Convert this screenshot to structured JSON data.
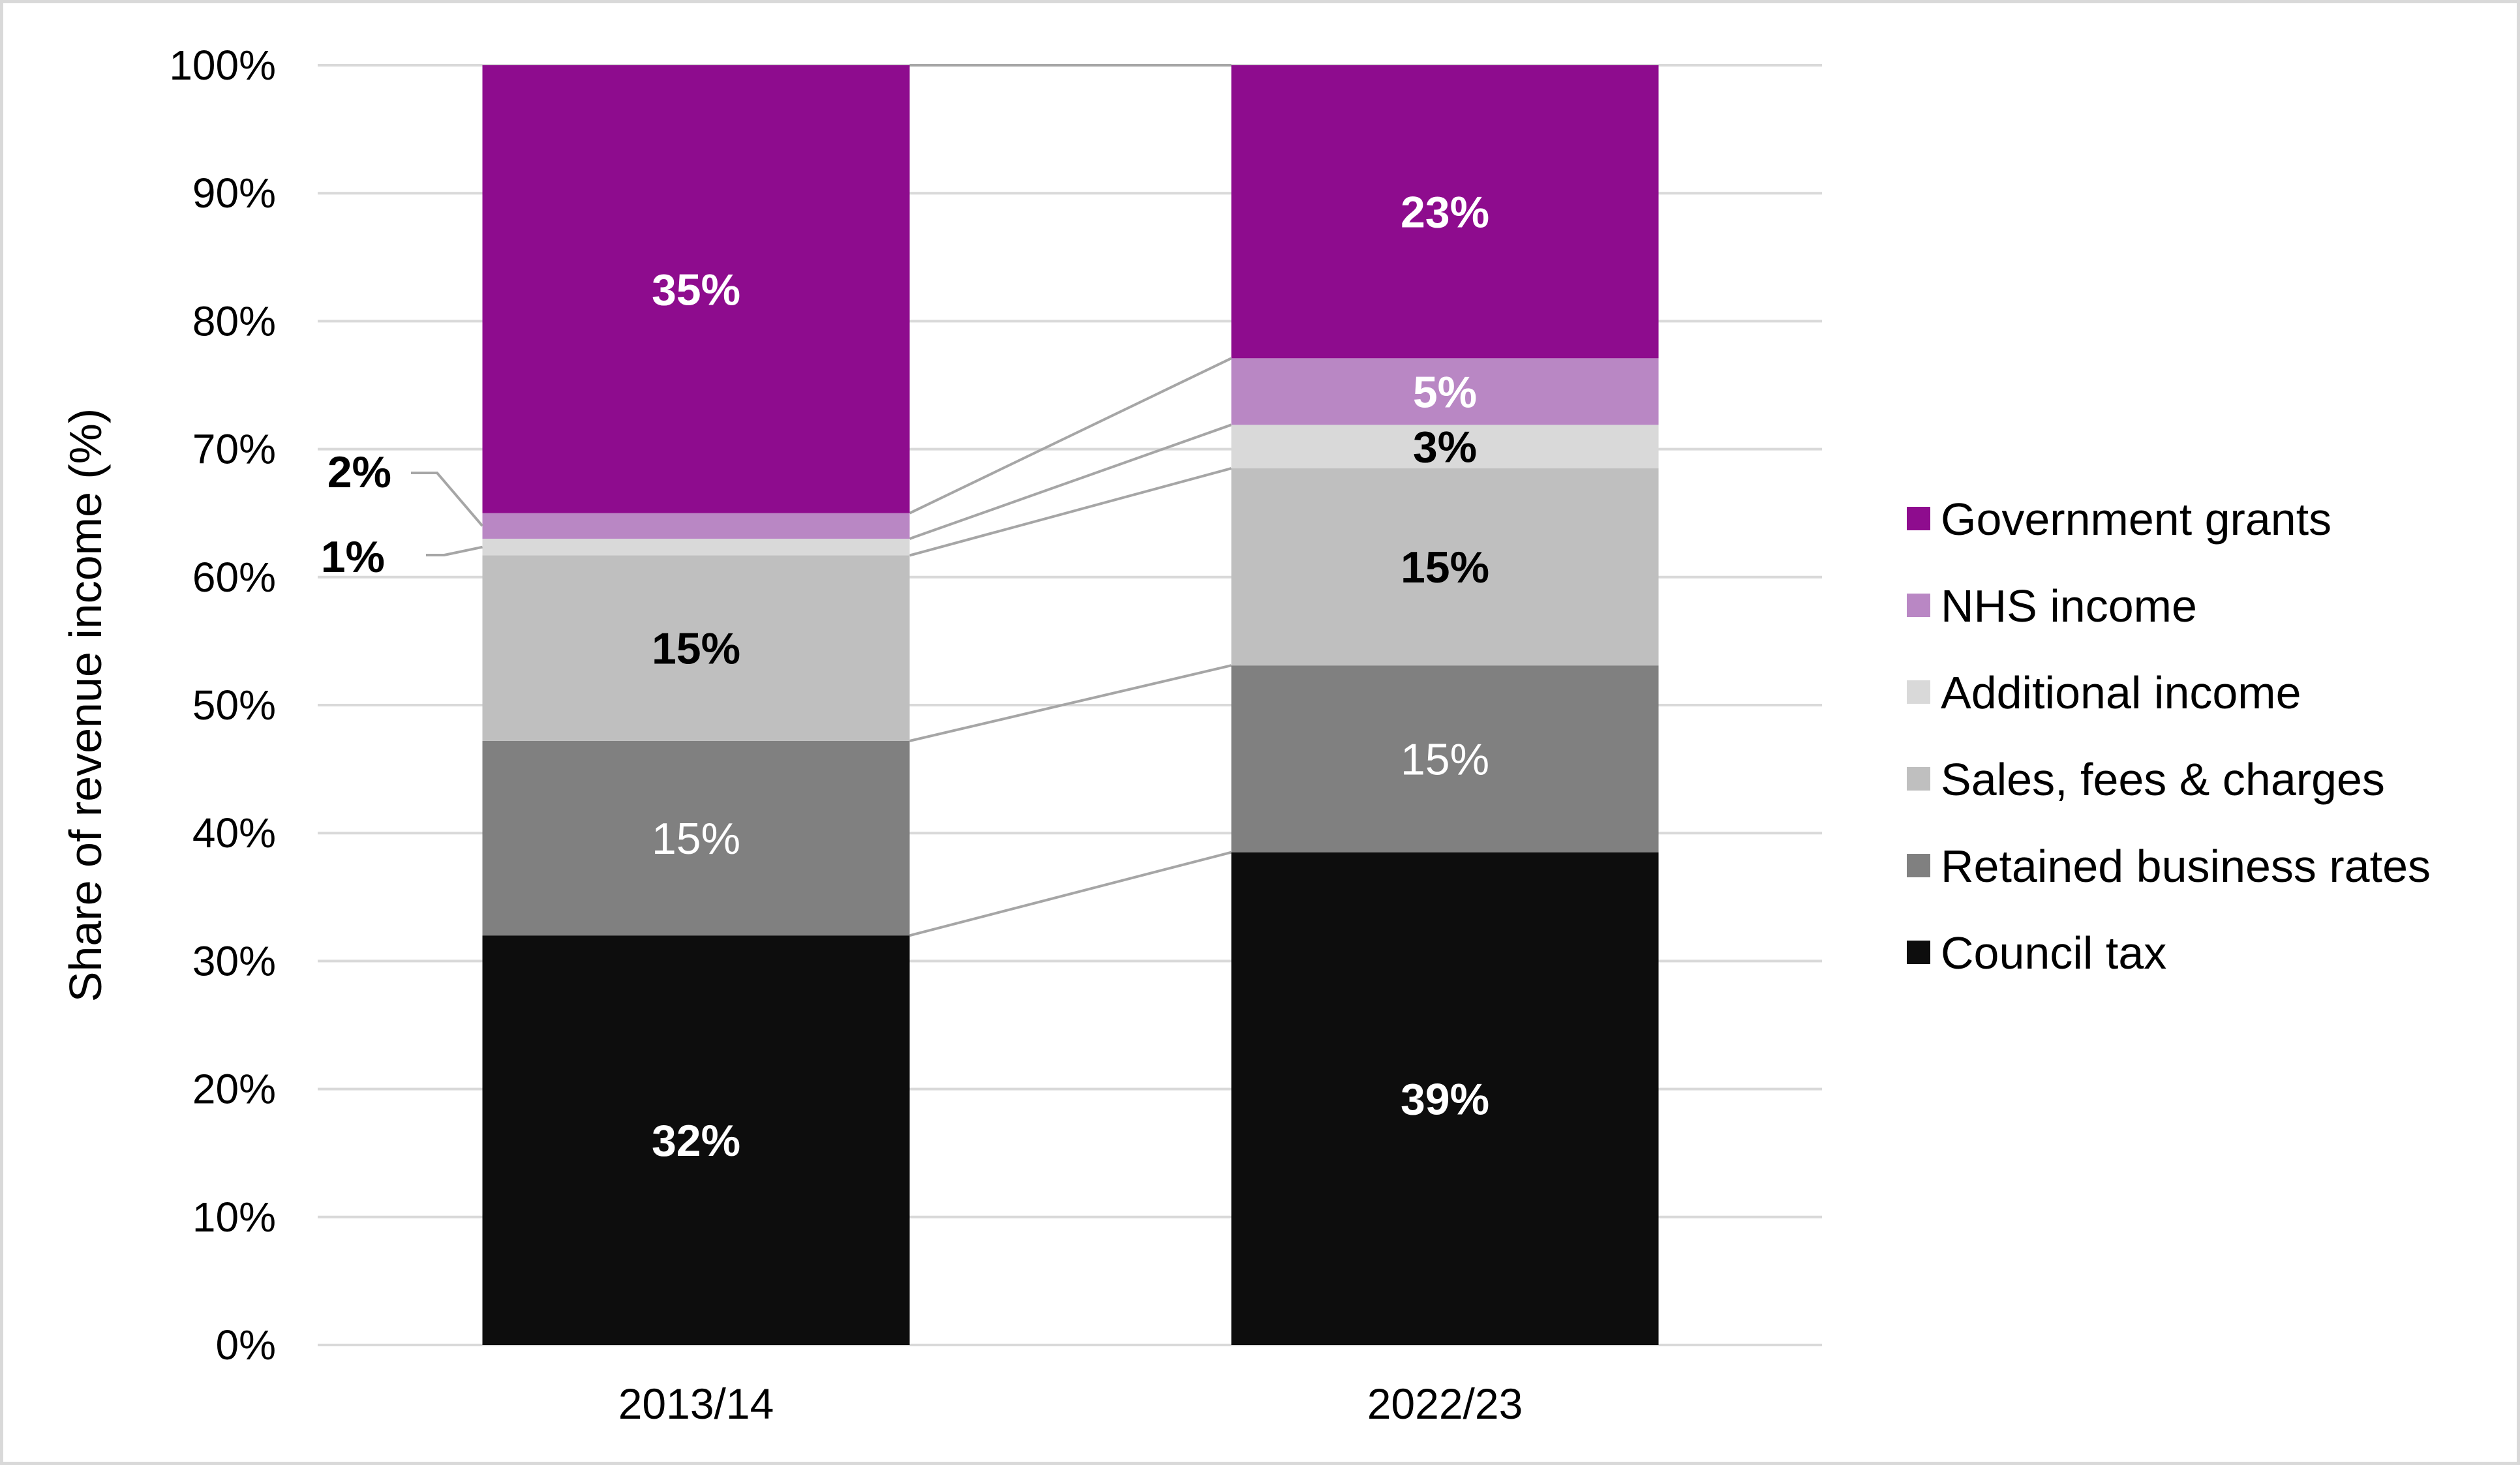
{
  "chart_data": {
    "type": "bar",
    "stacked": true,
    "title": "",
    "xlabel": "",
    "ylabel": "Share of revenue income (%)",
    "ylim": [
      0,
      100
    ],
    "yticks": [
      "0%",
      "10%",
      "20%",
      "30%",
      "40%",
      "50%",
      "60%",
      "70%",
      "80%",
      "90%",
      "100%"
    ],
    "grid": true,
    "legend_position": "right",
    "categories": [
      "2013/14",
      "2022/23"
    ],
    "series": [
      {
        "name": "Council tax",
        "values": [
          32,
          38.5
        ],
        "labels": [
          "32%",
          "39%"
        ],
        "color": "#0d0d0d",
        "label_color": "#ffffff",
        "label_bold": true
      },
      {
        "name": "Retained business rates",
        "values": [
          15.2,
          14.6
        ],
        "labels": [
          "15%",
          "15%"
        ],
        "color": "#808080",
        "label_color": "#ffffff",
        "label_bold": false
      },
      {
        "name": "Sales, fees & charges",
        "values": [
          14.5,
          15.4
        ],
        "labels": [
          "15%",
          "15%"
        ],
        "color": "#bfbfbf",
        "label_color": "#000000",
        "label_bold": true
      },
      {
        "name": "Additional income",
        "values": [
          1.3,
          3.4
        ],
        "labels": [
          "1%",
          "3%"
        ],
        "color": "#d9d9d9",
        "label_color": "#000000",
        "label_bold": true
      },
      {
        "name": "NHS income",
        "values": [
          2.0,
          5.2
        ],
        "labels": [
          "2%",
          "5%"
        ],
        "color": "#b987c4",
        "label_color": "#ffffff",
        "label_bold": true
      },
      {
        "name": "Government grants",
        "values": [
          35.0,
          22.9
        ],
        "labels": [
          "35%",
          "23%"
        ],
        "color": "#8e0c8e",
        "label_color": "#ffffff",
        "label_bold": true
      }
    ],
    "legend_order": [
      "Government grants",
      "NHS income",
      "Additional income",
      "Sales, fees & charges",
      "Retained business rates",
      "Council tax"
    ],
    "connector_color": "#a6a6a6",
    "gridline_color": "#d9d9d9"
  }
}
